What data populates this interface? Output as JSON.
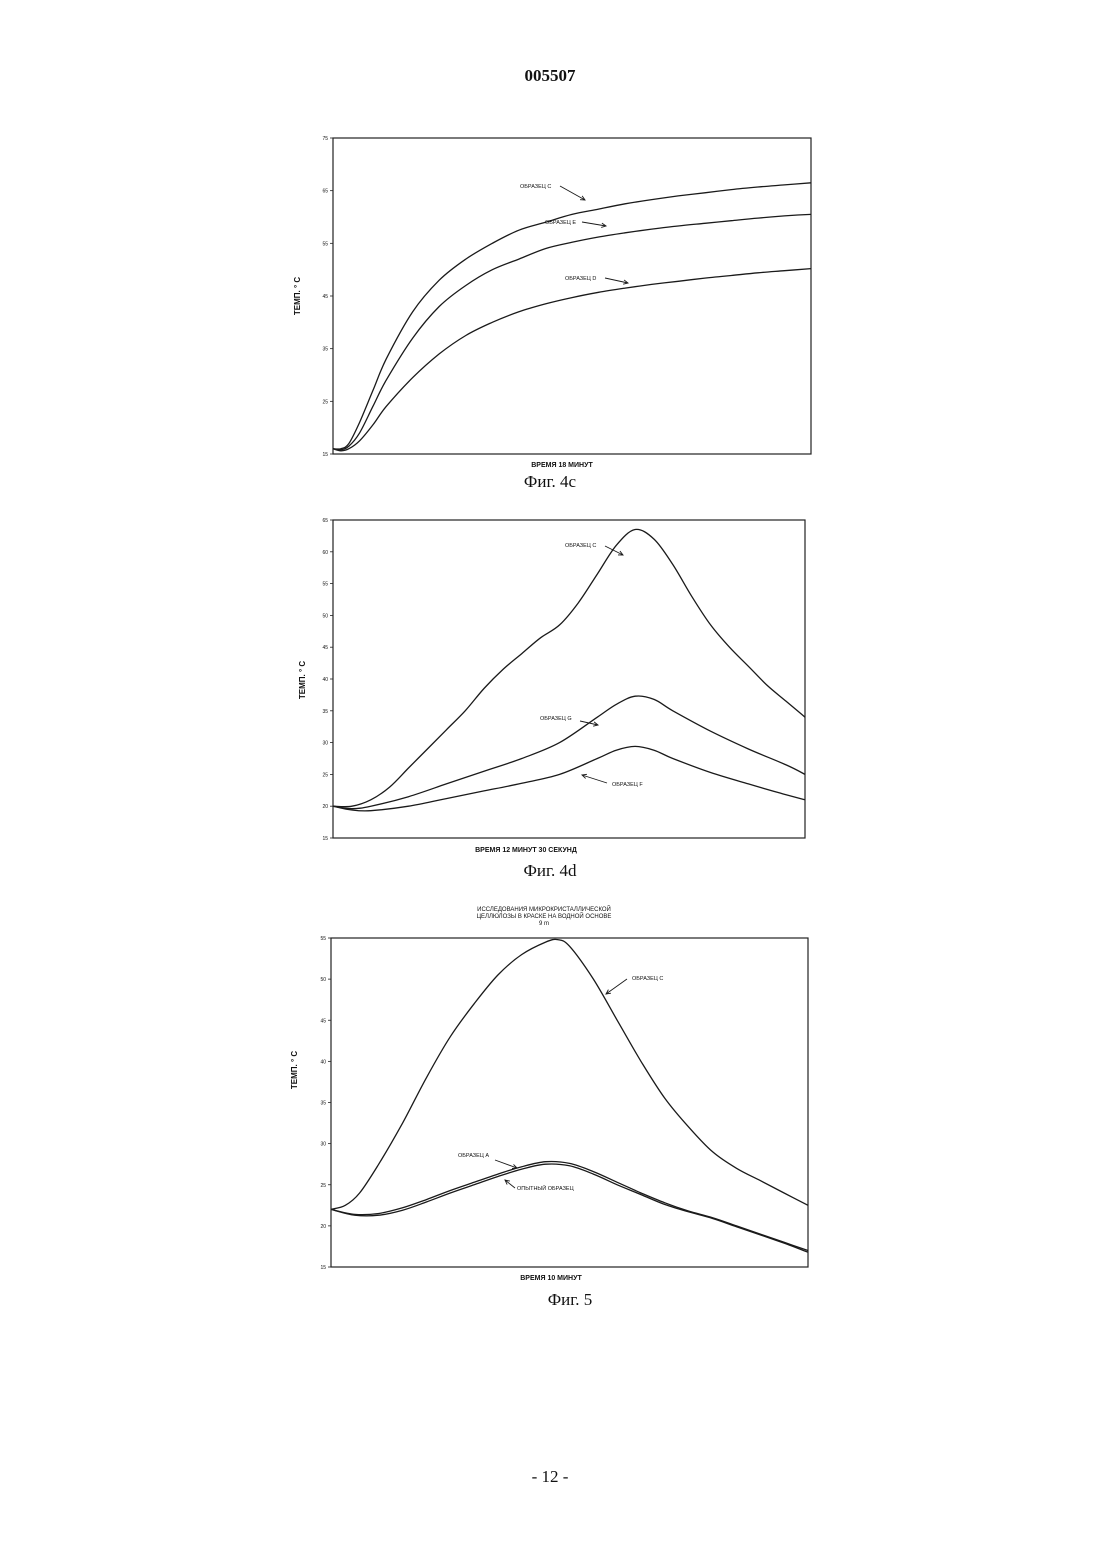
{
  "header": {
    "doc_number": "005507"
  },
  "footer": {
    "page_number": "- 12 -"
  },
  "chart_data": [
    {
      "type": "line",
      "caption": "Фиг. 4c",
      "xlabel": "ВРЕМЯ 18 МИНУТ",
      "ylabel": "ТЕМП. ° С",
      "ylim": [
        15,
        75
      ],
      "xlim": [
        0,
        18
      ],
      "yticks": [
        "15",
        "25",
        "35",
        "45",
        "55",
        "65",
        "75"
      ],
      "series": [
        {
          "name": "ОБРАЗЕЦ С",
          "x": [
            0,
            0.3,
            0.6,
            1,
            1.5,
            2,
            3,
            4,
            5,
            6,
            7,
            8,
            9,
            10,
            11,
            12,
            13,
            14,
            15,
            16,
            17,
            18
          ],
          "values": [
            16,
            16,
            17,
            21,
            27,
            33,
            42,
            48,
            52,
            55,
            57.5,
            59,
            60.5,
            61.5,
            62.5,
            63.3,
            64,
            64.6,
            65.2,
            65.7,
            66.1,
            66.5
          ]
        },
        {
          "name": "ОБРАЗЕЦ Е",
          "x": [
            0,
            0.3,
            0.6,
            1,
            1.5,
            2,
            3,
            4,
            5,
            6,
            7,
            8,
            9,
            10,
            11,
            12,
            13,
            14,
            15,
            16,
            17,
            18
          ],
          "values": [
            16,
            15.8,
            16.5,
            19,
            24,
            29,
            37,
            43,
            47,
            50,
            52,
            54,
            55.2,
            56.2,
            57,
            57.7,
            58.3,
            58.8,
            59.3,
            59.8,
            60.2,
            60.5
          ]
        },
        {
          "name": "ОБРАЗЕЦ D",
          "x": [
            0,
            0.3,
            0.6,
            1,
            1.5,
            2,
            3,
            4,
            5,
            6,
            7,
            8,
            9,
            10,
            11,
            12,
            13,
            14,
            15,
            16,
            17,
            18
          ],
          "values": [
            16,
            15.6,
            16,
            17.5,
            20.5,
            24,
            29.5,
            34,
            37.5,
            40,
            42,
            43.5,
            44.7,
            45.7,
            46.5,
            47.2,
            47.8,
            48.4,
            48.9,
            49.4,
            49.8,
            50.2
          ]
        }
      ]
    },
    {
      "type": "line",
      "caption": "Фиг. 4d",
      "xlabel": "ВРЕМЯ 12 МИНУТ 30 СЕКУНД",
      "ylabel": "ТЕМП. ° С",
      "ylim": [
        15,
        65
      ],
      "xlim": [
        0,
        12.5
      ],
      "yticks": [
        "15",
        "20",
        "25",
        "30",
        "35",
        "40",
        "45",
        "50",
        "55",
        "60",
        "65"
      ],
      "series": [
        {
          "name": "ОБРАЗЕЦ С",
          "x": [
            0,
            0.5,
            1,
            1.5,
            2,
            2.5,
            3,
            3.5,
            4,
            4.5,
            5,
            5.5,
            6,
            6.5,
            7,
            7.5,
            8,
            8.5,
            9,
            9.5,
            10,
            10.5,
            11,
            11.5,
            12,
            12.5
          ],
          "values": [
            20,
            20,
            21,
            23,
            26,
            29,
            32,
            35,
            38.5,
            41.5,
            44,
            46.5,
            48.5,
            52,
            56.5,
            61,
            63.5,
            62,
            58,
            53,
            48.5,
            45,
            42,
            39,
            36.5,
            34
          ]
        },
        {
          "name": "ОБРАЗЕЦ G",
          "x": [
            0,
            0.5,
            1,
            2,
            3,
            4,
            5,
            6,
            7,
            7.5,
            8,
            8.5,
            9,
            10,
            11,
            12,
            12.5
          ],
          "values": [
            20,
            19.6,
            20,
            21.5,
            23.5,
            25.5,
            27.5,
            30,
            34,
            36,
            37.3,
            36.8,
            35,
            31.8,
            29,
            26.5,
            25
          ]
        },
        {
          "name": "ОБРАЗЕЦ F",
          "x": [
            0,
            0.5,
            1,
            2,
            3,
            4,
            5,
            6,
            7,
            7.5,
            8,
            8.5,
            9,
            10,
            11,
            12,
            12.5
          ],
          "values": [
            20,
            19.4,
            19.3,
            20,
            21.2,
            22.4,
            23.6,
            25,
            27.5,
            28.8,
            29.4,
            28.8,
            27.5,
            25.3,
            23.5,
            21.8,
            21
          ]
        }
      ]
    },
    {
      "type": "line",
      "caption": "Фиг. 5",
      "title": "ИССЛЕДОВАНИЯ МИКРОКРИСТАЛЛИЧЕСКОЙ ЦЕЛЛЮЛОЗЫ В КРАСКЕ НА ВОДНОЙ ОСНОВЕ 9 m",
      "title_lines": [
        "ИССЛЕДОВАНИЯ МИКРОКРИСТАЛЛИЧЕСКОЙ",
        "ЦЕЛЛЮЛОЗЫ В КРАСКЕ НА ВОДНОЙ ОСНОВЕ",
        "9 m"
      ],
      "xlabel": "ВРЕМЯ 10 МИНУТ",
      "ylabel": "ТЕМП. ° С",
      "ylim": [
        15,
        55
      ],
      "xlim": [
        0,
        10
      ],
      "yticks": [
        "15",
        "20",
        "25",
        "30",
        "35",
        "40",
        "45",
        "50",
        "55"
      ],
      "series": [
        {
          "name": "ОБРАЗЕЦ С",
          "x": [
            0,
            0.3,
            0.6,
            1,
            1.5,
            2,
            2.5,
            3,
            3.5,
            4,
            4.5,
            4.75,
            5,
            5.5,
            6,
            6.5,
            7,
            7.5,
            8,
            8.5,
            9,
            9.5,
            10
          ],
          "values": [
            22,
            22.5,
            24,
            27.5,
            32.5,
            38,
            43,
            47,
            50.5,
            53,
            54.5,
            54.8,
            54,
            50,
            45,
            40,
            35.5,
            32,
            29,
            27,
            25.5,
            24,
            22.5
          ]
        },
        {
          "name": "ОБРАЗЕЦ А",
          "x": [
            0,
            0.5,
            1,
            1.5,
            2,
            2.5,
            3,
            3.5,
            4,
            4.5,
            5,
            5.5,
            6,
            6.5,
            7,
            7.5,
            8,
            8.5,
            9,
            9.5,
            10
          ],
          "values": [
            22,
            21.4,
            21.5,
            22.2,
            23.2,
            24.3,
            25.3,
            26.3,
            27.2,
            27.8,
            27.6,
            26.6,
            25.3,
            24,
            22.8,
            21.8,
            21,
            20,
            19,
            18,
            17
          ]
        },
        {
          "name": "ОПЫТНЫЙ ОБРАЗЕЦ",
          "x": [
            0,
            0.5,
            1,
            1.5,
            2,
            2.5,
            3,
            3.5,
            4,
            4.5,
            5,
            5.5,
            6,
            6.5,
            7,
            7.5,
            8,
            8.5,
            9,
            9.5,
            10
          ],
          "values": [
            22,
            21.3,
            21.3,
            21.9,
            22.9,
            24,
            25,
            26,
            26.9,
            27.5,
            27.3,
            26.3,
            25,
            23.8,
            22.6,
            21.7,
            20.9,
            19.9,
            18.9,
            17.9,
            16.8
          ]
        }
      ]
    }
  ]
}
